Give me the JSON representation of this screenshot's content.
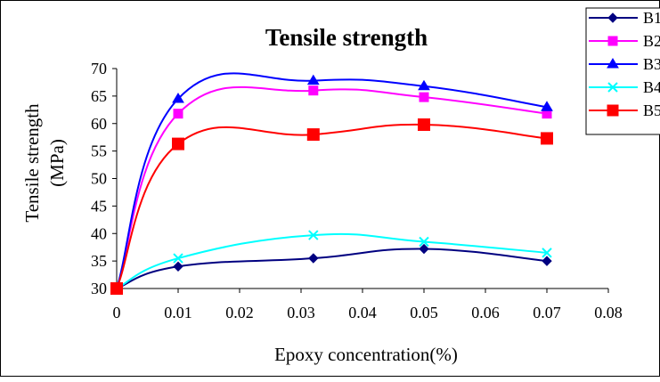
{
  "chart_data": {
    "type": "line",
    "title": "Tensile strength",
    "xlabel": "Epoxy concentration(%)",
    "ylabel_line1": "Tensile strength",
    "ylabel_line2": "(MPa)",
    "xlim": [
      0,
      0.08
    ],
    "ylim": [
      30,
      70
    ],
    "x_ticks": [
      "0",
      "0.01",
      "0.02",
      "0.03",
      "0.04",
      "0.05",
      "0.06",
      "0.07",
      "0.08"
    ],
    "y_ticks": [
      "30",
      "35",
      "40",
      "45",
      "50",
      "55",
      "60",
      "65",
      "70"
    ],
    "grid": false,
    "legend_position": "top-right",
    "x": [
      0,
      0.01,
      0.032,
      0.05,
      0.07
    ],
    "series": [
      {
        "name": "B1",
        "values": [
          30,
          34.0,
          35.5,
          37.2,
          35.0
        ],
        "color": "#000080",
        "marker": "diamond"
      },
      {
        "name": "B2",
        "values": [
          30,
          61.8,
          66.0,
          64.8,
          61.8
        ],
        "color": "#ff00ff",
        "marker": "square"
      },
      {
        "name": "B3",
        "values": [
          30,
          64.5,
          67.8,
          66.8,
          63.0
        ],
        "color": "#0000ff",
        "marker": "triangle"
      },
      {
        "name": "B4",
        "values": [
          30,
          35.5,
          39.7,
          38.5,
          36.5
        ],
        "color": "#00ffff",
        "marker": "x"
      },
      {
        "name": "B5",
        "values": [
          30,
          56.3,
          58.0,
          59.8,
          57.3
        ],
        "color": "#ff0000",
        "marker": "square"
      }
    ]
  }
}
